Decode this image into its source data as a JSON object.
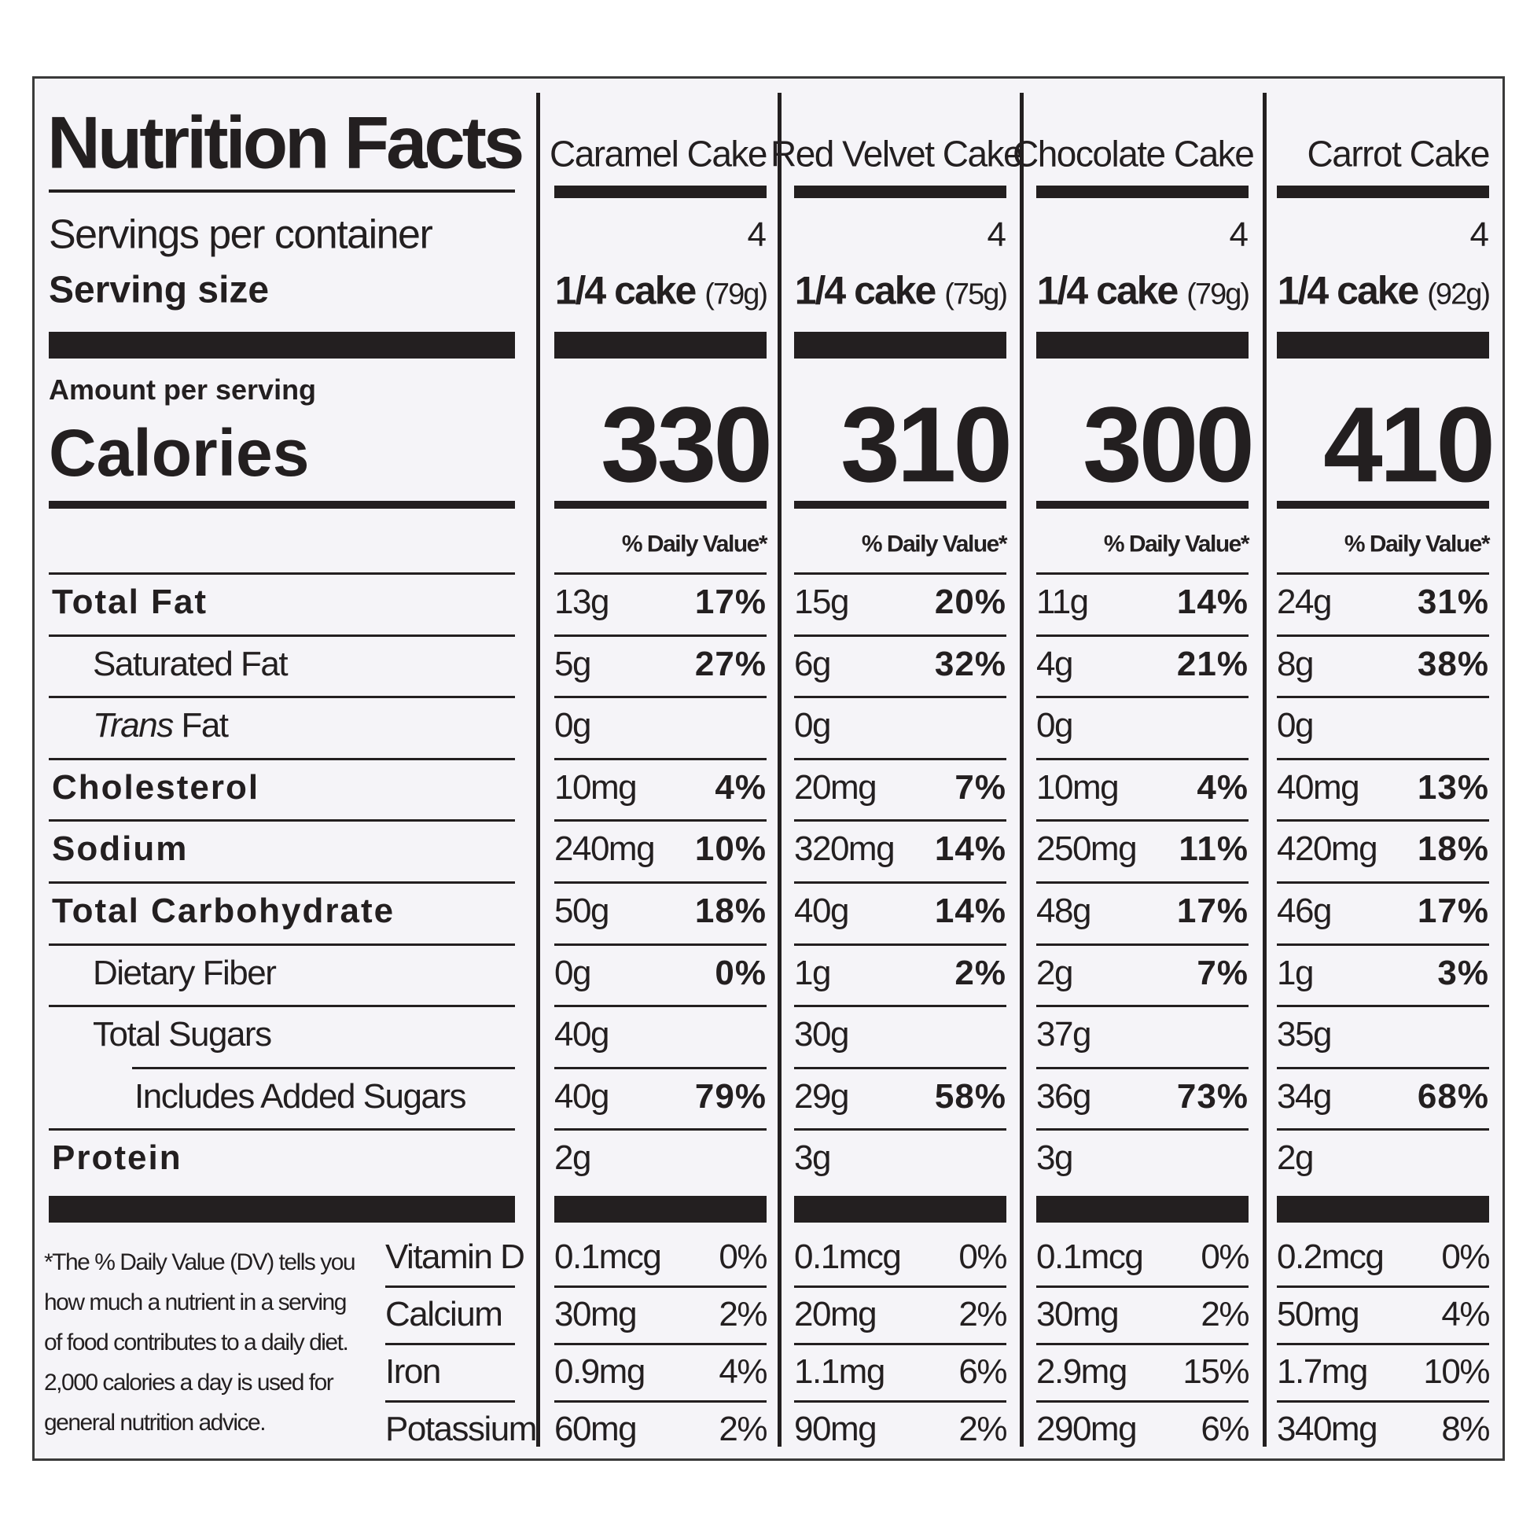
{
  "title": "Nutrition Facts",
  "servings_label": "Servings per container",
  "serving_size_label": "Serving size",
  "amount_label": "Amount per serving",
  "calories_label": "Calories",
  "nutrient_labels": [
    "Total Fat",
    "Saturated Fat",
    {
      "italic": "Trans",
      "rest": "Fat"
    },
    "Cholesterol",
    "Sodium",
    "Total Carbohydrate",
    "Dietary Fiber",
    "Total Sugars",
    "Includes Added Sugars",
    "Protein"
  ],
  "micro_labels": [
    "Vitamin D",
    "Calcium",
    "Iron",
    "Potassium"
  ],
  "footnote": "*The % Daily Value (DV) tells you how much a nutrient in a serving of food contributes to a daily diet. 2,000 calories a day is used for general nutrition advice.",
  "products": [
    {
      "name": "Caramel Cake",
      "servings": "4",
      "serving_size": "1/4 cake",
      "serving_weight": "(79g)",
      "calories": "330",
      "dv_header": "% Daily Value*",
      "nutrients": [
        [
          "13g",
          "17%"
        ],
        [
          "5g",
          "27%"
        ],
        [
          "0g"
        ],
        [
          "10mg",
          "4%"
        ],
        [
          "240mg",
          "10%"
        ],
        [
          "50g",
          "18%"
        ],
        [
          "0g",
          "0%"
        ],
        [
          "40g"
        ],
        [
          "40g",
          "79%"
        ],
        [
          "2g"
        ]
      ],
      "micros": [
        [
          "0.1mcg",
          "0%"
        ],
        [
          "30mg",
          "2%"
        ],
        [
          "0.9mg",
          "4%"
        ],
        [
          "60mg",
          "2%"
        ]
      ]
    },
    {
      "name": "Red Velvet Cake",
      "servings": "4",
      "serving_size": "1/4 cake",
      "serving_weight": "(75g)",
      "calories": "310",
      "dv_header": "% Daily Value*",
      "nutrients": [
        [
          "15g",
          "20%"
        ],
        [
          "6g",
          "32%"
        ],
        [
          "0g"
        ],
        [
          "20mg",
          "7%"
        ],
        [
          "320mg",
          "14%"
        ],
        [
          "40g",
          "14%"
        ],
        [
          "1g",
          "2%"
        ],
        [
          "30g"
        ],
        [
          "29g",
          "58%"
        ],
        [
          "3g"
        ]
      ],
      "micros": [
        [
          "0.1mcg",
          "0%"
        ],
        [
          "20mg",
          "2%"
        ],
        [
          "1.1mg",
          "6%"
        ],
        [
          "90mg",
          "2%"
        ]
      ]
    },
    {
      "name": "Chocolate Cake",
      "servings": "4",
      "serving_size": "1/4 cake",
      "serving_weight": "(79g)",
      "calories": "300",
      "dv_header": "% Daily Value*",
      "nutrients": [
        [
          "11g",
          "14%"
        ],
        [
          "4g",
          "21%"
        ],
        [
          "0g"
        ],
        [
          "10mg",
          "4%"
        ],
        [
          "250mg",
          "11%"
        ],
        [
          "48g",
          "17%"
        ],
        [
          "2g",
          "7%"
        ],
        [
          "37g"
        ],
        [
          "36g",
          "73%"
        ],
        [
          "3g"
        ]
      ],
      "micros": [
        [
          "0.1mcg",
          "0%"
        ],
        [
          "30mg",
          "2%"
        ],
        [
          "2.9mg",
          "15%"
        ],
        [
          "290mg",
          "6%"
        ]
      ]
    },
    {
      "name": "Carrot Cake",
      "servings": "4",
      "serving_size": "1/4 cake",
      "serving_weight": "(92g)",
      "calories": "410",
      "dv_header": "% Daily Value*",
      "nutrients": [
        [
          "24g",
          "31%"
        ],
        [
          "8g",
          "38%"
        ],
        [
          "0g"
        ],
        [
          "40mg",
          "13%"
        ],
        [
          "420mg",
          "18%"
        ],
        [
          "46g",
          "17%"
        ],
        [
          "1g",
          "3%"
        ],
        [
          "35g"
        ],
        [
          "34g",
          "68%"
        ],
        [
          "2g"
        ]
      ],
      "micros": [
        [
          "0.2mcg",
          "0%"
        ],
        [
          "50mg",
          "4%"
        ],
        [
          "1.7mg",
          "10%"
        ],
        [
          "340mg",
          "8%"
        ]
      ]
    }
  ]
}
